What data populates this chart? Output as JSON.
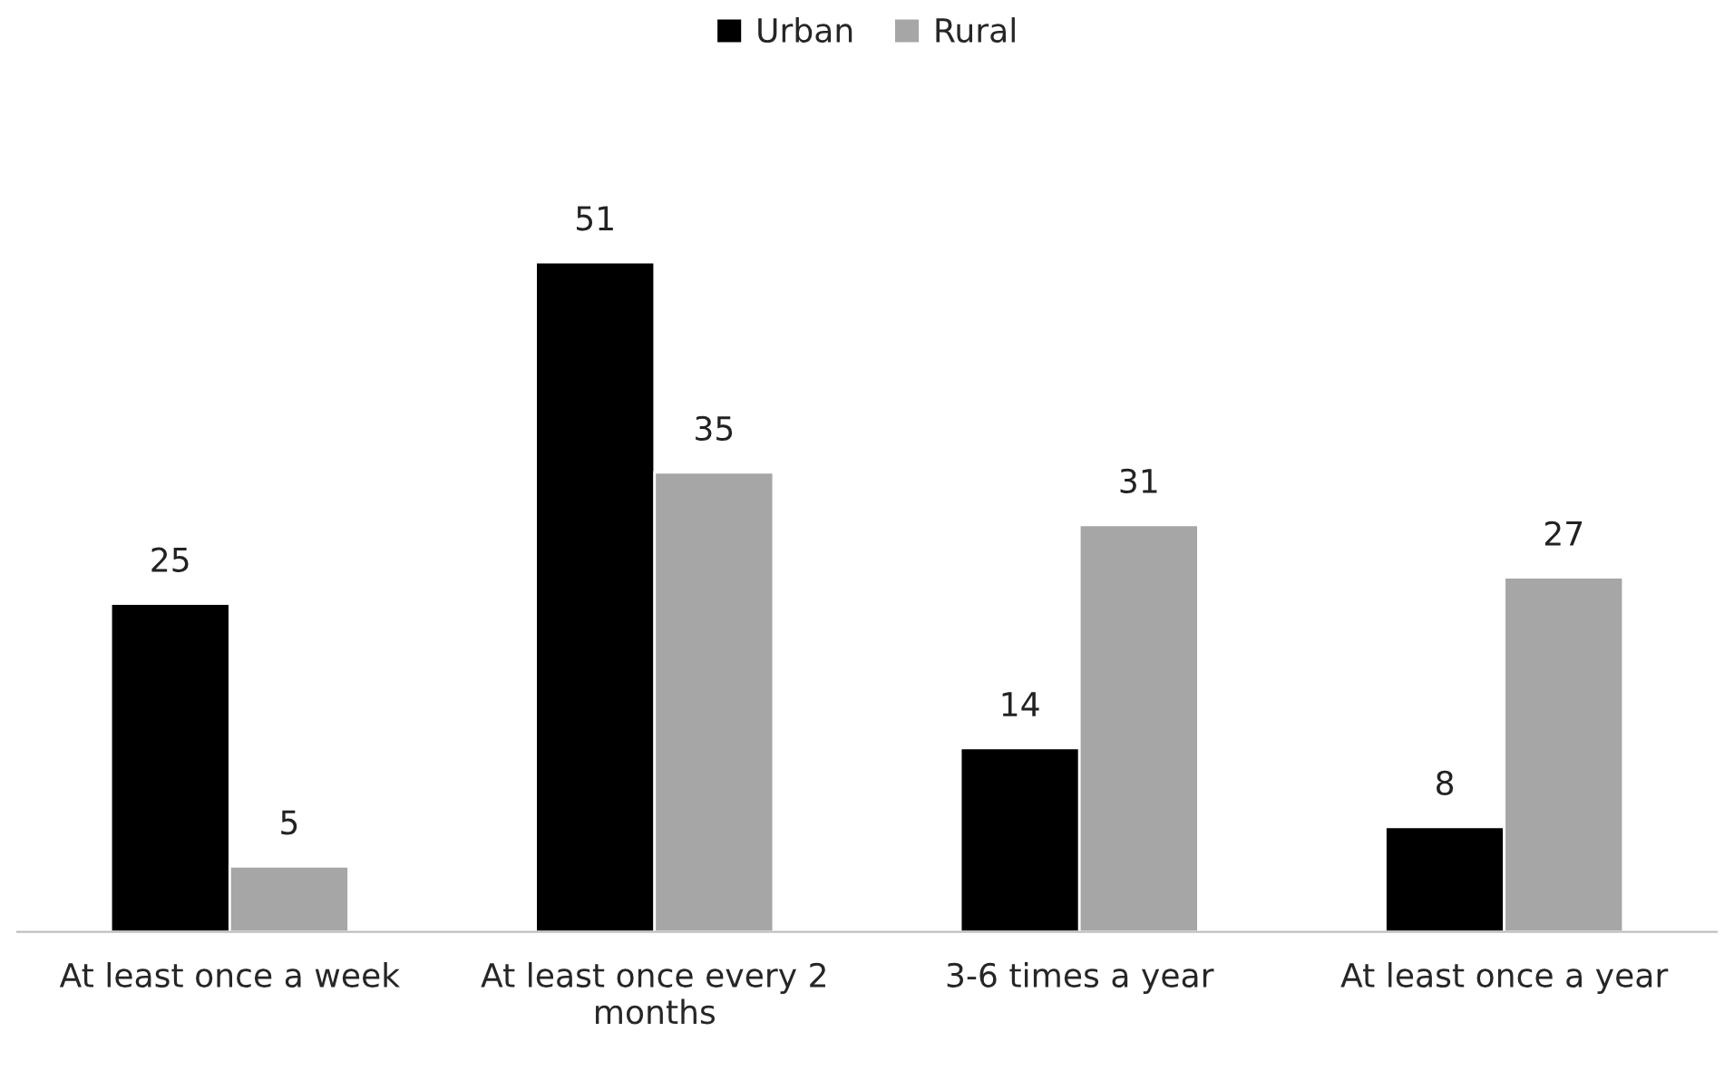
{
  "chart_data": {
    "type": "bar",
    "categories": [
      "At least once a week",
      "At least once every 2\nmonths",
      "3-6 times a year",
      "At least once a year"
    ],
    "series": [
      {
        "name": "Urban",
        "color": "#000000",
        "values": [
          25,
          51,
          14,
          8
        ]
      },
      {
        "name": "Rural",
        "color": "#a6a6a6",
        "values": [
          5,
          35,
          31,
          27
        ]
      }
    ],
    "data_labels": true,
    "legend": "top",
    "grid": false,
    "tick_labels": "x"
  }
}
